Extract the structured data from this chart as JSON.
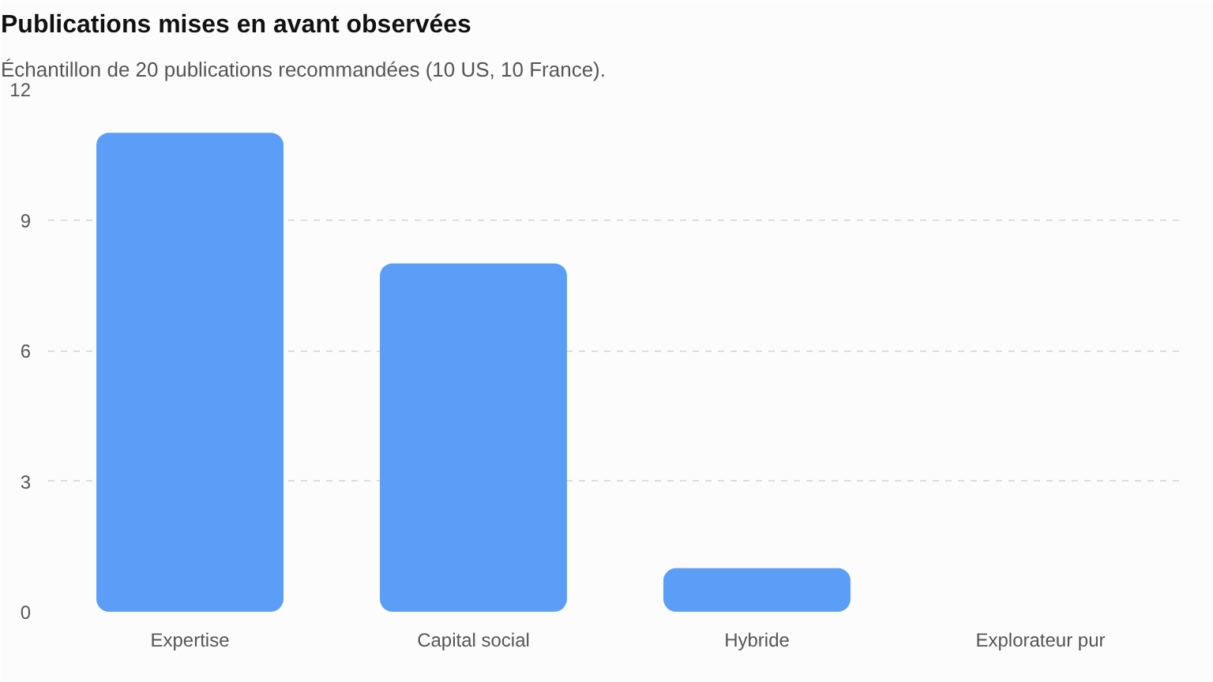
{
  "chart_data": {
    "type": "bar",
    "title": "Publications mises en avant observées",
    "subtitle": "Échantillon de 20 publications recommandées (10 US, 10 France).",
    "categories": [
      "Expertise",
      "Capital social",
      "Hybride",
      "Explorateur pur"
    ],
    "values": [
      11,
      8,
      1,
      0
    ],
    "color": "#5a9ef8",
    "ylim": [
      0,
      12
    ],
    "yticks": [
      0,
      3,
      6,
      9,
      12
    ],
    "grid": "y"
  }
}
